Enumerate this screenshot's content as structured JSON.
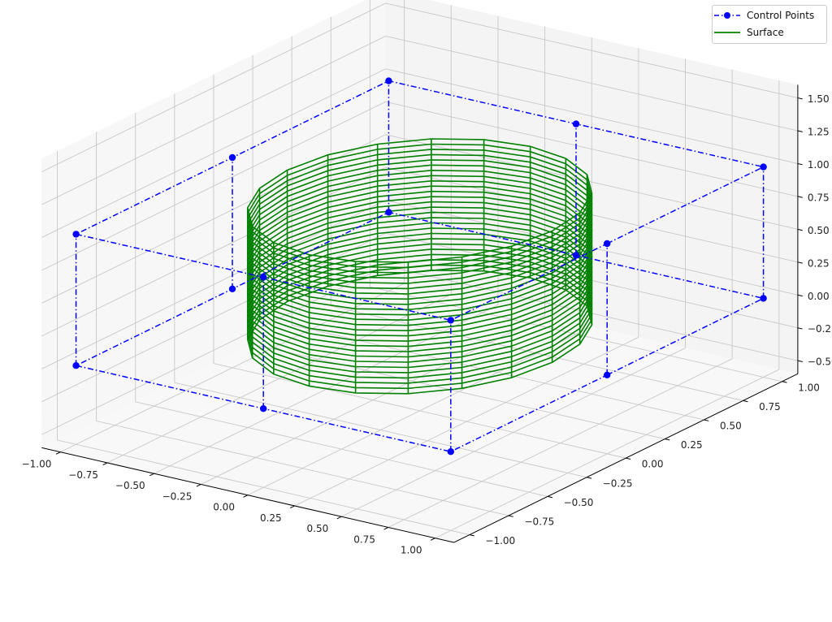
{
  "chart_data": {
    "type": "3d-wireframe",
    "title": "",
    "xlabel": "",
    "ylabel": "",
    "zlabel": "",
    "x_ticks": [
      "−1.00",
      "−0.75",
      "−0.50",
      "−0.25",
      "0.00",
      "0.25",
      "0.50",
      "0.75",
      "1.00"
    ],
    "y_ticks": [
      "−1.00",
      "−0.75",
      "−0.50",
      "−0.25",
      "0.00",
      "0.25",
      "0.50",
      "0.75",
      "1.00"
    ],
    "z_ticks": [
      "−0.50",
      "−0.25",
      "0.00",
      "0.25",
      "0.50",
      "0.75",
      "1.00",
      "1.25",
      "1.50"
    ],
    "xlim": [
      -1.1,
      1.1
    ],
    "ylim": [
      -1.1,
      1.1
    ],
    "zlim": [
      -0.6,
      1.6
    ],
    "grid": true,
    "legend": {
      "position": "top-right",
      "entries": [
        {
          "label": "Control Points",
          "style": "dash-dot with circle markers",
          "color": "#0000ff"
        },
        {
          "label": "Surface",
          "style": "solid line",
          "color": "#008000"
        }
      ]
    },
    "series": [
      {
        "name": "Control Points",
        "color": "#0000ff",
        "rows": [
          [
            [
              1,
              0,
              0
            ],
            [
              1,
              1,
              0
            ],
            [
              0,
              1,
              0
            ],
            [
              -1,
              1,
              0
            ],
            [
              -1,
              0,
              0
            ],
            [
              -1,
              -1,
              0
            ],
            [
              0,
              -1,
              0
            ],
            [
              1,
              -1,
              0
            ],
            [
              1,
              0,
              0
            ]
          ],
          [
            [
              1,
              0,
              1
            ],
            [
              1,
              1,
              1
            ],
            [
              0,
              1,
              1
            ],
            [
              -1,
              1,
              1
            ],
            [
              -1,
              0,
              1
            ],
            [
              -1,
              -1,
              1
            ],
            [
              0,
              -1,
              1
            ],
            [
              1,
              -1,
              1
            ],
            [
              1,
              0,
              1
            ]
          ]
        ]
      },
      {
        "name": "Surface",
        "color": "#008000",
        "shape": "cylinder",
        "radius": 0.707,
        "z_range": [
          0,
          1
        ],
        "angular_segments": 20,
        "height_segments": 25
      }
    ]
  }
}
